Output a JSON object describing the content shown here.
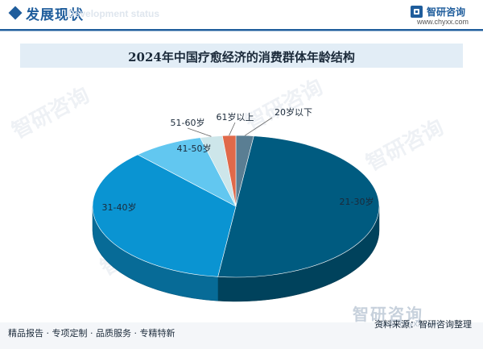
{
  "header": {
    "title": "发展现状",
    "subtitle": "Development status",
    "brand_name": "智研咨询",
    "brand_url": "www.chyxx.com"
  },
  "watermark": {
    "text": "智研咨询",
    "url": "www.chyxx.com"
  },
  "footer": {
    "left": "精品报告 · 专项定制 · 品质服务 · 专精特新",
    "source": "资料来源：智研咨询整理"
  },
  "chart_data": {
    "type": "pie",
    "style": "3d",
    "title": "2024年中国疗愈经济的消费群体年龄结构",
    "categories": [
      "20岁以下",
      "21-30岁",
      "31-40岁",
      "41-50岁",
      "51-60岁",
      "61岁以上"
    ],
    "values": [
      2.0,
      50.0,
      36.0,
      8.0,
      2.5,
      1.5
    ],
    "colors": [
      "#5a7e93",
      "#005b80",
      "#0a94d2",
      "#62c7f0",
      "#cde6ea",
      "#e0694a"
    ],
    "legend": "none"
  }
}
